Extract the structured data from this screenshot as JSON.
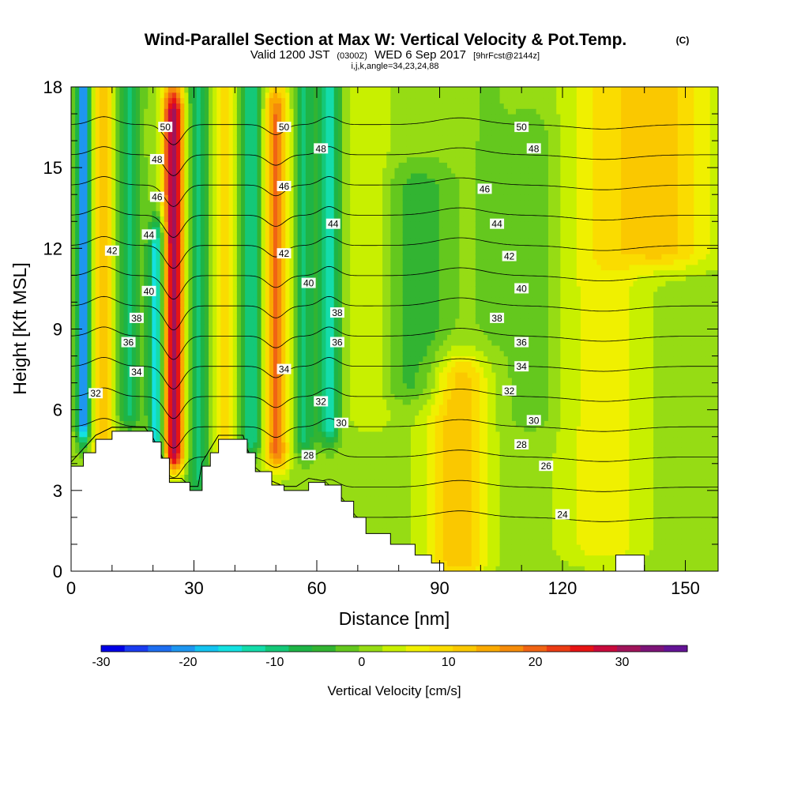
{
  "header": {
    "title_main": "Wind-Parallel Section at Max W: Vertical Velocity & Pot.Temp.",
    "title_mark": "(C)",
    "valid_prefix": "Valid 1200 JST",
    "valid_utc": "(0300Z)",
    "valid_date": "WED 6 Sep 2017",
    "valid_fcst": "[9hrFcst@2144z]",
    "params": "i,j,k,angle=34,23,24,88"
  },
  "chart_data": {
    "type": "heatmap",
    "title": "Wind-Parallel Section at Max W: Vertical Velocity & Pot.Temp.",
    "xlabel": "Distance [nm]",
    "ylabel": "Height [Kft MSL]",
    "xlim": [
      0,
      158
    ],
    "ylim": [
      0,
      18
    ],
    "x_ticks": [
      0,
      30,
      60,
      90,
      120,
      150
    ],
    "y_ticks": [
      0,
      3,
      6,
      9,
      12,
      15,
      18
    ],
    "colorbar": {
      "label": "Vertical Velocity [cm/s]",
      "ticks": [
        -30,
        -20,
        -10,
        0,
        10,
        20,
        30
      ],
      "range": [
        -30,
        37.5
      ],
      "colors": [
        "#0000e6",
        "#1a3cf0",
        "#1e6ef0",
        "#1e96f0",
        "#14c3f0",
        "#14e1e1",
        "#14dcaa",
        "#14c878",
        "#1eb446",
        "#32b432",
        "#64c81e",
        "#96dc14",
        "#c8f000",
        "#f0f000",
        "#fadc00",
        "#fac800",
        "#faaa00",
        "#f58c0a",
        "#f06414",
        "#eb3c14",
        "#e61414",
        "#c80a3c",
        "#a0145a",
        "#7d1478",
        "#641496"
      ]
    },
    "velocity_field": {
      "background": 1,
      "features": [
        {
          "x": 3,
          "y_from": 5.5,
          "y_to": 18,
          "width": 1.5,
          "w": -24
        },
        {
          "x": 8,
          "y_from": 4,
          "y_to": 18,
          "width": 3,
          "w": 10
        },
        {
          "x": 14,
          "y_from": 6,
          "y_to": 18,
          "width": 3,
          "w": -10
        },
        {
          "x": 21,
          "y_from": 4.5,
          "y_to": 12,
          "width": 2,
          "w": -18
        },
        {
          "x": 25,
          "y_from": 4.5,
          "y_to": 17,
          "width": 2.5,
          "w": 30
        },
        {
          "x": 31,
          "y_from": 3.5,
          "y_to": 18,
          "width": 2.5,
          "w": -10
        },
        {
          "x": 38,
          "y_from": 4.5,
          "y_to": 18,
          "width": 3,
          "w": 8
        },
        {
          "x": 44,
          "y_from": 5,
          "y_to": 18,
          "width": 3,
          "w": -12
        },
        {
          "x": 50,
          "y_from": 4.5,
          "y_to": 17,
          "width": 3,
          "w": 18
        },
        {
          "x": 57,
          "y_from": 5,
          "y_to": 18,
          "width": 2.5,
          "w": -10
        },
        {
          "x": 63,
          "y_from": 5.5,
          "y_to": 18,
          "width": 2.5,
          "w": -14
        },
        {
          "x": 73,
          "y_from": 6,
          "y_to": 18,
          "width": 5,
          "w": 4
        },
        {
          "x": 95,
          "y_from": 0.5,
          "y_to": 7,
          "width": 8,
          "w": 12
        },
        {
          "x": 85,
          "y_from": 7,
          "y_to": 14,
          "width": 8,
          "w": -6
        },
        {
          "x": 102,
          "y_from": 0.5,
          "y_to": 18,
          "width": 4,
          "w": -2
        },
        {
          "x": 112,
          "y_from": 6,
          "y_to": 16,
          "width": 6,
          "w": -4
        },
        {
          "x": 130,
          "y_from": 1,
          "y_to": 18,
          "width": 10,
          "w": 6
        },
        {
          "x": 145,
          "y_from": 12,
          "y_to": 18,
          "width": 12,
          "w": 10
        }
      ]
    },
    "terrain": [
      {
        "x": 0,
        "top": 3.9
      },
      {
        "x": 3,
        "top": 4.4
      },
      {
        "x": 6,
        "top": 4.9
      },
      {
        "x": 10,
        "top": 5.2
      },
      {
        "x": 18,
        "top": 5.2
      },
      {
        "x": 20,
        "top": 4.8
      },
      {
        "x": 22,
        "top": 4.2
      },
      {
        "x": 24,
        "top": 3.3
      },
      {
        "x": 27,
        "top": 3.3
      },
      {
        "x": 29,
        "top": 3.0
      },
      {
        "x": 31,
        "top": 3.0
      },
      {
        "x": 32,
        "top": 3.9
      },
      {
        "x": 34,
        "top": 4.4
      },
      {
        "x": 36,
        "top": 4.9
      },
      {
        "x": 42,
        "top": 4.9
      },
      {
        "x": 43,
        "top": 4.4
      },
      {
        "x": 45,
        "top": 3.7
      },
      {
        "x": 49,
        "top": 3.2
      },
      {
        "x": 52,
        "top": 3.0
      },
      {
        "x": 55,
        "top": 3.0
      },
      {
        "x": 58,
        "top": 3.3
      },
      {
        "x": 62,
        "top": 3.2
      },
      {
        "x": 66,
        "top": 2.6
      },
      {
        "x": 69,
        "top": 2.0
      },
      {
        "x": 72,
        "top": 1.4
      },
      {
        "x": 78,
        "top": 1.0
      },
      {
        "x": 84,
        "top": 0.6
      },
      {
        "x": 88,
        "top": 0.3
      },
      {
        "x": 91,
        "top": 0
      },
      {
        "x": 132,
        "top": 0
      },
      {
        "x": 133,
        "top": 0.6
      },
      {
        "x": 139,
        "top": 0.6
      },
      {
        "x": 140,
        "top": 0
      },
      {
        "x": 158,
        "top": 0
      }
    ],
    "theta_contours": [
      24,
      26,
      28,
      30,
      32,
      34,
      36,
      38,
      40,
      42,
      44,
      46,
      48,
      50
    ],
    "theta_labels": [
      {
        "text": "50",
        "x": 23,
        "y": 16.5
      },
      {
        "text": "50",
        "x": 52,
        "y": 16.5
      },
      {
        "text": "50",
        "x": 110,
        "y": 16.5
      },
      {
        "text": "48",
        "x": 21,
        "y": 15.3
      },
      {
        "text": "48",
        "x": 61,
        "y": 15.7
      },
      {
        "text": "48",
        "x": 113,
        "y": 15.7
      },
      {
        "text": "46",
        "x": 21,
        "y": 13.9
      },
      {
        "text": "46",
        "x": 52,
        "y": 14.3
      },
      {
        "text": "46",
        "x": 101,
        "y": 14.2
      },
      {
        "text": "44",
        "x": 19,
        "y": 12.5
      },
      {
        "text": "44",
        "x": 64,
        "y": 12.9
      },
      {
        "text": "44",
        "x": 104,
        "y": 12.9
      },
      {
        "text": "42",
        "x": 10,
        "y": 11.9
      },
      {
        "text": "42",
        "x": 52,
        "y": 11.8
      },
      {
        "text": "42",
        "x": 107,
        "y": 11.7
      },
      {
        "text": "40",
        "x": 19,
        "y": 10.4
      },
      {
        "text": "40",
        "x": 58,
        "y": 10.7
      },
      {
        "text": "40",
        "x": 110,
        "y": 10.5
      },
      {
        "text": "38",
        "x": 16,
        "y": 9.4
      },
      {
        "text": "38",
        "x": 65,
        "y": 9.6
      },
      {
        "text": "38",
        "x": 104,
        "y": 9.4
      },
      {
        "text": "36",
        "x": 14,
        "y": 8.5
      },
      {
        "text": "36",
        "x": 65,
        "y": 8.5
      },
      {
        "text": "36",
        "x": 110,
        "y": 8.5
      },
      {
        "text": "34",
        "x": 16,
        "y": 7.4
      },
      {
        "text": "34",
        "x": 52,
        "y": 7.5
      },
      {
        "text": "34",
        "x": 110,
        "y": 7.6
      },
      {
        "text": "32",
        "x": 6,
        "y": 6.6
      },
      {
        "text": "32",
        "x": 61,
        "y": 6.3
      },
      {
        "text": "32",
        "x": 107,
        "y": 6.7
      },
      {
        "text": "30",
        "x": 66,
        "y": 5.5
      },
      {
        "text": "30",
        "x": 113,
        "y": 5.6
      },
      {
        "text": "28",
        "x": 58,
        "y": 4.3
      },
      {
        "text": "28",
        "x": 110,
        "y": 4.7
      },
      {
        "text": "26",
        "x": 116,
        "y": 3.9
      },
      {
        "text": "24",
        "x": 120,
        "y": 2.1
      }
    ]
  }
}
